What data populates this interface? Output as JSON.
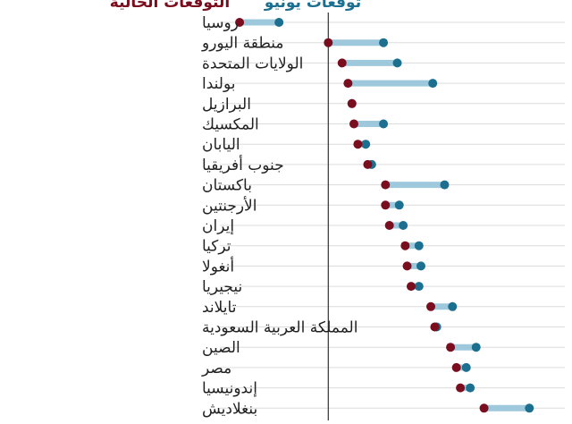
{
  "chart_data": {
    "type": "dumbbell",
    "legend": {
      "current_label": "التوقعات الحالية",
      "june_label": "توقعات يونيو",
      "current_color": "#7a0e1e",
      "june_color": "#1d6f8f",
      "bar_color": "#9ec9dd"
    },
    "reference_value": 0,
    "categories": [
      "روسيا",
      "منطقة اليورو",
      "الولايات المتحدة",
      "بولندا",
      "البرازيل",
      "المكسيك",
      "اليابان",
      "جنوب أفريقيا",
      "باكستان",
      "الأرجنتين",
      "إيران",
      "تركيا",
      "أنغولا",
      "نيجيريا",
      "تايلاند",
      "المملكة العربية السعودية",
      "الصين",
      "مصر",
      "إندونيسيا",
      "بنغلاديش"
    ],
    "series": [
      {
        "name": "التوقعات الحالية",
        "values": [
          -4.5,
          0.0,
          0.7,
          1.0,
          1.2,
          1.3,
          1.5,
          2.0,
          2.9,
          2.9,
          3.1,
          3.9,
          4.0,
          4.2,
          5.2,
          5.4,
          6.2,
          6.5,
          6.7,
          7.9
        ]
      },
      {
        "name": "توقعات يونيو",
        "values": [
          -2.5,
          2.8,
          3.5,
          5.3,
          1.2,
          2.8,
          1.9,
          2.2,
          5.9,
          3.6,
          3.8,
          4.6,
          4.7,
          4.6,
          6.3,
          5.5,
          7.5,
          7.0,
          7.2,
          10.2
        ]
      }
    ],
    "xlim": [
      -5.5,
      12.0
    ],
    "grid": true
  }
}
